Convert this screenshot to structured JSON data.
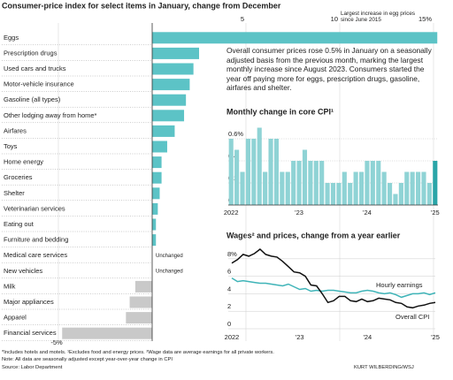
{
  "chart_data": [
    {
      "type": "bar",
      "orientation": "horizontal",
      "title": "Consumer-price index for select items in January, change from December",
      "categories": [
        "Eggs",
        "Prescription drugs",
        "Used cars and trucks",
        "Motor-vehicle insurance",
        "Gasoline (all types)",
        "Other lodging away from home*",
        "Airfares",
        "Toys",
        "Home energy",
        "Groceries",
        "Shelter",
        "Veterinarian services",
        "Eating out",
        "Furniture and bedding",
        "Medical care services",
        "New vehicles",
        "Milk",
        "Major appliances",
        "Apparel",
        "Financial services"
      ],
      "values": [
        15.2,
        2.5,
        2.2,
        2.0,
        1.8,
        1.7,
        1.2,
        0.8,
        0.5,
        0.5,
        0.4,
        0.3,
        0.2,
        0.2,
        0,
        0,
        -0.9,
        -1.2,
        -1.4,
        -4.8
      ],
      "value_labels": [
        null,
        null,
        null,
        null,
        null,
        null,
        null,
        null,
        null,
        null,
        null,
        null,
        null,
        null,
        "Unchanged",
        "Unchanged",
        null,
        null,
        null,
        null
      ],
      "color": "#5cc3c6",
      "negative_color": "#c9c9c9",
      "xlim": [
        -5,
        15
      ],
      "xticks": [
        {
          "value": -5,
          "label": "-5%"
        },
        5,
        10,
        {
          "value": 15,
          "label": "15%"
        }
      ],
      "annotation": "Largest increase in egg prices since June 2015"
    },
    {
      "type": "bar",
      "title": "Monthly change in core CPI¹",
      "categories": [
        "2022",
        null,
        null,
        null,
        null,
        null,
        null,
        null,
        null,
        null,
        null,
        null,
        "'23",
        null,
        null,
        null,
        null,
        null,
        null,
        null,
        null,
        null,
        null,
        null,
        "'24",
        null,
        null,
        null,
        null,
        null,
        null,
        null,
        null,
        null,
        null,
        null,
        "'25"
      ],
      "values": [
        0.6,
        0.5,
        0.3,
        0.6,
        0.6,
        0.7,
        0.3,
        0.6,
        0.6,
        0.3,
        0.3,
        0.4,
        0.4,
        0.5,
        0.4,
        0.4,
        0.4,
        0.2,
        0.2,
        0.2,
        0.3,
        0.2,
        0.3,
        0.3,
        0.4,
        0.4,
        0.4,
        0.3,
        0.2,
        0.1,
        0.2,
        0.3,
        0.3,
        0.3,
        0.3,
        0.2,
        0.4
      ],
      "colors": [
        "#8fd3d5",
        "#8fd3d5",
        "#8fd3d5",
        "#8fd3d5",
        "#8fd3d5",
        "#8fd3d5",
        "#8fd3d5",
        "#8fd3d5",
        "#8fd3d5",
        "#8fd3d5",
        "#8fd3d5",
        "#8fd3d5",
        "#8fd3d5",
        "#8fd3d5",
        "#8fd3d5",
        "#8fd3d5",
        "#8fd3d5",
        "#8fd3d5",
        "#8fd3d5",
        "#8fd3d5",
        "#8fd3d5",
        "#8fd3d5",
        "#8fd3d5",
        "#8fd3d5",
        "#8fd3d5",
        "#8fd3d5",
        "#8fd3d5",
        "#8fd3d5",
        "#8fd3d5",
        "#8fd3d5",
        "#8fd3d5",
        "#8fd3d5",
        "#8fd3d5",
        "#8fd3d5",
        "#8fd3d5",
        "#8fd3d5",
        "#2aa5a8"
      ],
      "ylim": [
        0,
        0.72
      ],
      "yticks": [
        0,
        0.2,
        0.4,
        {
          "value": 0.6,
          "label": "0.6%"
        }
      ],
      "grid": true
    },
    {
      "type": "line",
      "title": "Wages² and prices, change from a year earlier",
      "categories": [
        "2022",
        null,
        null,
        null,
        null,
        null,
        null,
        null,
        null,
        null,
        null,
        null,
        "'23",
        null,
        null,
        null,
        null,
        null,
        null,
        null,
        null,
        null,
        null,
        null,
        "'24",
        null,
        null,
        null,
        null,
        null,
        null,
        null,
        null,
        null,
        null,
        null,
        "'25"
      ],
      "series": [
        {
          "name": "Hourly earnings",
          "color": "#3fb4b8",
          "values": [
            5.8,
            5.4,
            5.5,
            5.4,
            5.3,
            5.2,
            5.2,
            5.1,
            5.0,
            4.9,
            5.1,
            4.8,
            4.5,
            4.6,
            4.3,
            4.4,
            4.3,
            4.4,
            4.4,
            4.3,
            4.2,
            4.1,
            4.1,
            4.3,
            4.4,
            4.3,
            4.1,
            4.0,
            4.1,
            3.9,
            3.6,
            3.8,
            4.0,
            4.0,
            4.1,
            3.9,
            4.1
          ]
        },
        {
          "name": "Overall CPI",
          "color": "#111111",
          "values": [
            7.5,
            7.9,
            8.5,
            8.3,
            8.6,
            9.1,
            8.5,
            8.3,
            8.2,
            7.7,
            7.1,
            6.5,
            6.4,
            6.0,
            5.0,
            4.9,
            4.0,
            3.0,
            3.2,
            3.7,
            3.7,
            3.2,
            3.1,
            3.4,
            3.1,
            3.2,
            3.5,
            3.4,
            3.3,
            3.0,
            2.9,
            2.5,
            2.4,
            2.6,
            2.7,
            2.9,
            3.0
          ]
        }
      ],
      "ylim": [
        0,
        9.5
      ],
      "yticks": [
        0,
        2,
        4,
        6,
        {
          "value": 8,
          "label": "8%"
        }
      ],
      "grid": true
    }
  ],
  "text": "Overall consumer prices rose 0.5% in January on a seasonally adjusted basis from the previous month, marking the largest monthly increase since August 2023. Consumers started the year off paying more for eggs, prescription drugs, gasoline, airfares and shelter.",
  "footnotes": [
    "*Includes hotels and motels. ¹Excludes food and energy prices. ²Wage data are average earnings for all private workers.",
    "Note: All data are seasonally adjusted except year-over-year change in CPI"
  ],
  "source": "Source: Labor Department",
  "credit": "KURT WILBERDING/WSJ"
}
